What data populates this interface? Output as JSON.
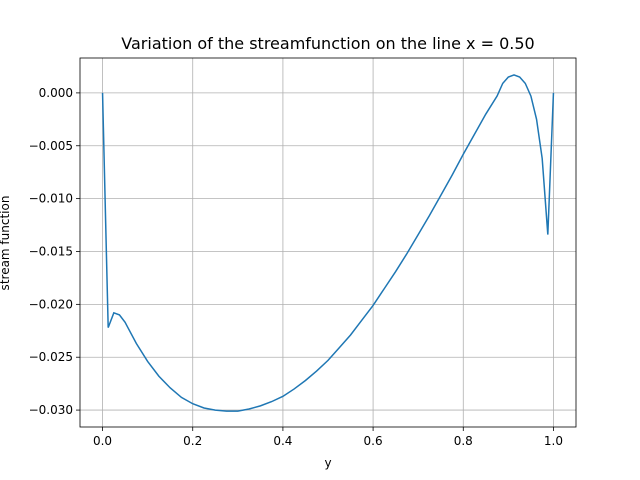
{
  "chart_data": {
    "type": "line",
    "title": "Variation of the streamfunction on the line x = 0.50",
    "xlabel": "y",
    "ylabel": "stream function",
    "xlim": [
      -0.05,
      1.05
    ],
    "ylim": [
      -0.0316,
      0.0033
    ],
    "xticks": [
      0.0,
      0.2,
      0.4,
      0.6,
      0.8,
      1.0
    ],
    "xtick_labels": [
      "0.0",
      "0.2",
      "0.4",
      "0.6",
      "0.8",
      "1.0"
    ],
    "yticks": [
      0.0,
      -0.005,
      -0.01,
      -0.015,
      -0.02,
      -0.025,
      -0.03
    ],
    "ytick_labels": [
      "0.000",
      "−0.005",
      "−0.010",
      "−0.015",
      "−0.020",
      "−0.025",
      "−0.030"
    ],
    "grid": true,
    "color": "#1f77b4",
    "series": [
      {
        "x": [
          0.0,
          0.0125,
          0.025,
          0.0375,
          0.05,
          0.075,
          0.1,
          0.125,
          0.15,
          0.175,
          0.2,
          0.225,
          0.25,
          0.275,
          0.3,
          0.325,
          0.35,
          0.375,
          0.4,
          0.425,
          0.45,
          0.475,
          0.5,
          0.525,
          0.55,
          0.575,
          0.6,
          0.625,
          0.65,
          0.675,
          0.7,
          0.725,
          0.75,
          0.775,
          0.8,
          0.825,
          0.85,
          0.875,
          0.8875,
          0.9,
          0.9125,
          0.925,
          0.9375,
          0.95,
          0.9625,
          0.975,
          0.9875,
          1.0
        ],
        "y": [
          0.0,
          -0.0222,
          -0.0208,
          -0.021,
          -0.0217,
          -0.0237,
          -0.0254,
          -0.0268,
          -0.0279,
          -0.0288,
          -0.0294,
          -0.0298,
          -0.03,
          -0.0301,
          -0.0301,
          -0.0299,
          -0.0296,
          -0.0292,
          -0.0287,
          -0.028,
          -0.0272,
          -0.0263,
          -0.0253,
          -0.0241,
          -0.0229,
          -0.0215,
          -0.0201,
          -0.0185,
          -0.0169,
          -0.0152,
          -0.0134,
          -0.0116,
          -0.0097,
          -0.0078,
          -0.0058,
          -0.0039,
          -0.002,
          -0.0003,
          0.0009,
          0.0015,
          0.0017,
          0.0015,
          0.0009,
          -0.0003,
          -0.0025,
          -0.0062,
          -0.0134,
          0.0
        ]
      }
    ]
  }
}
